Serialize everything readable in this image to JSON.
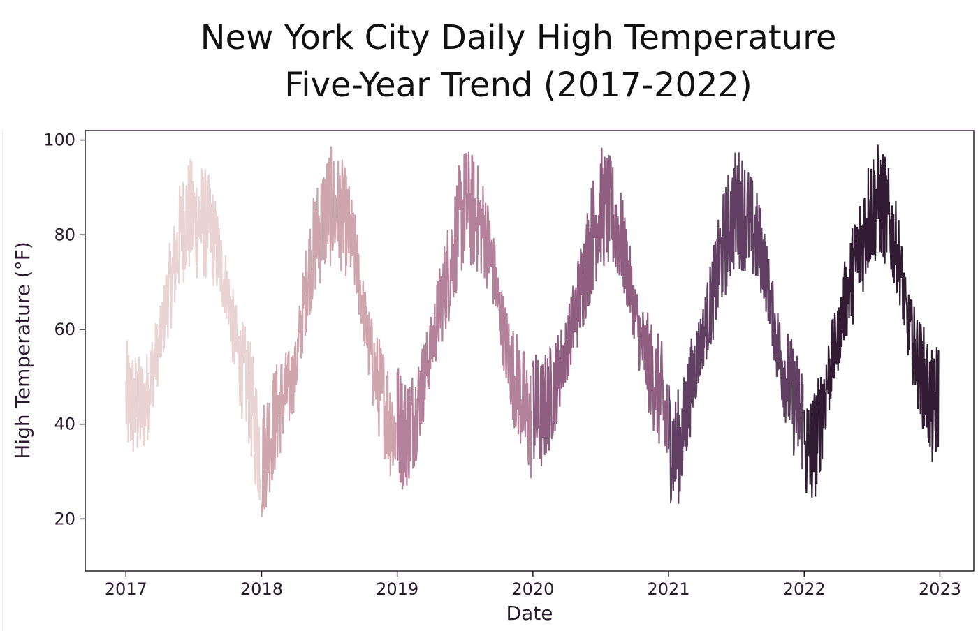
{
  "chart_data": {
    "type": "line",
    "title_lines": [
      "New York City Daily High Temperature",
      "Five-Year Trend (2017-2022)"
    ],
    "xlabel": "Date",
    "ylabel": "High Temperature (°F)",
    "xlim": [
      2016.7,
      2023.25
    ],
    "ylim": [
      9,
      102
    ],
    "x_ticks": [
      2017,
      2018,
      2019,
      2020,
      2021,
      2022,
      2023
    ],
    "x_tick_labels": [
      "2017",
      "2018",
      "2019",
      "2020",
      "2021",
      "2022",
      "2023"
    ],
    "y_ticks": [
      20,
      40,
      60,
      80,
      100
    ],
    "y_tick_labels": [
      "20",
      "40",
      "60",
      "80",
      "100"
    ],
    "grid": false,
    "legend": "none",
    "colors": {
      "2017": "#ead3d3",
      "2018": "#cfa6ae",
      "2019": "#b4819a",
      "2020": "#8f5e80",
      "2021": "#603f63",
      "2022": "#321c34",
      "axes": "#2b1a2e"
    },
    "series": [
      {
        "year": 2017,
        "x": [
          2017.0,
          2017.05,
          2017.1,
          2017.15,
          2017.2,
          2017.25,
          2017.3,
          2017.35,
          2017.4,
          2017.45,
          2017.5,
          2017.55,
          2017.6,
          2017.65,
          2017.7,
          2017.75,
          2017.8,
          2017.85,
          2017.9,
          2017.95,
          2017.99
        ],
        "y": [
          45,
          44,
          43,
          45,
          52,
          57,
          66,
          72,
          80,
          84,
          83,
          83,
          82,
          79,
          73,
          68,
          58,
          52,
          48,
          40,
          34
        ]
      },
      {
        "year": 2018,
        "x": [
          2018.0,
          2018.05,
          2018.1,
          2018.15,
          2018.2,
          2018.25,
          2018.3,
          2018.35,
          2018.4,
          2018.45,
          2018.5,
          2018.55,
          2018.6,
          2018.65,
          2018.7,
          2018.75,
          2018.8,
          2018.85,
          2018.9,
          2018.95,
          2018.99
        ],
        "y": [
          31,
          37,
          41,
          45,
          47,
          51,
          63,
          73,
          79,
          83,
          86,
          85,
          84,
          80,
          74,
          64,
          55,
          49,
          45,
          41,
          38
        ]
      },
      {
        "year": 2019,
        "x": [
          2019.0,
          2019.05,
          2019.1,
          2019.15,
          2019.2,
          2019.25,
          2019.3,
          2019.35,
          2019.4,
          2019.45,
          2019.5,
          2019.55,
          2019.6,
          2019.65,
          2019.7,
          2019.75,
          2019.8,
          2019.85,
          2019.9,
          2019.95,
          2019.99
        ],
        "y": [
          41,
          38,
          40,
          44,
          50,
          56,
          63,
          69,
          75,
          82,
          86,
          85,
          83,
          80,
          74,
          65,
          57,
          51,
          47,
          42,
          40
        ]
      },
      {
        "year": 2020,
        "x": [
          2020.0,
          2020.05,
          2020.1,
          2020.15,
          2020.2,
          2020.25,
          2020.3,
          2020.35,
          2020.4,
          2020.45,
          2020.5,
          2020.55,
          2020.6,
          2020.65,
          2020.7,
          2020.75,
          2020.8,
          2020.85,
          2020.9,
          2020.95,
          2020.99
        ],
        "y": [
          44,
          41,
          44,
          47,
          52,
          56,
          62,
          68,
          75,
          81,
          86,
          85,
          83,
          79,
          72,
          64,
          57,
          53,
          49,
          45,
          39
        ]
      },
      {
        "year": 2021,
        "x": [
          2021.0,
          2021.05,
          2021.1,
          2021.15,
          2021.2,
          2021.25,
          2021.3,
          2021.35,
          2021.4,
          2021.45,
          2021.5,
          2021.55,
          2021.6,
          2021.65,
          2021.7,
          2021.75,
          2021.8,
          2021.85,
          2021.9,
          2021.95,
          2021.99
        ],
        "y": [
          38,
          34,
          37,
          46,
          53,
          58,
          64,
          70,
          77,
          82,
          86,
          85,
          82,
          79,
          75,
          66,
          57,
          52,
          47,
          43,
          42
        ]
      },
      {
        "year": 2022,
        "x": [
          2022.0,
          2022.05,
          2022.1,
          2022.15,
          2022.2,
          2022.25,
          2022.3,
          2022.35,
          2022.4,
          2022.45,
          2022.5,
          2022.55,
          2022.6,
          2022.65,
          2022.7,
          2022.75,
          2022.8,
          2022.85,
          2022.9,
          2022.95,
          2022.99
        ],
        "y": [
          35,
          34,
          38,
          46,
          53,
          58,
          66,
          71,
          76,
          82,
          86,
          87,
          85,
          80,
          75,
          63,
          57,
          52,
          48,
          42,
          46
        ]
      }
    ]
  }
}
